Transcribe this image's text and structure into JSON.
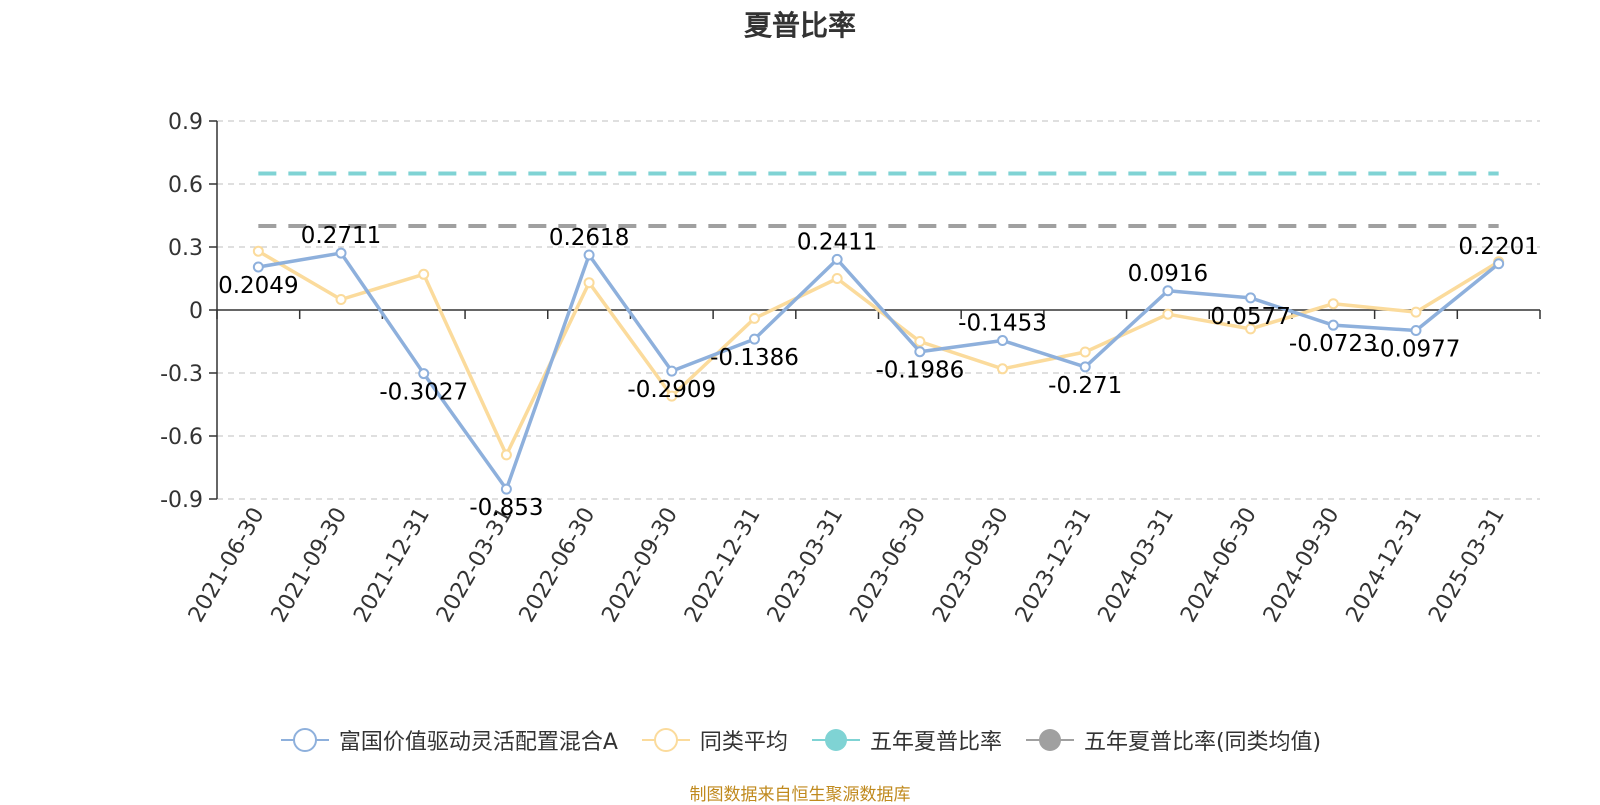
{
  "title": "夏普比率",
  "source_note": "制图数据来自恒生聚源数据库",
  "colors": {
    "fund": "#8eb0dc",
    "peer": "#fbdb9c",
    "five_year": "#7fd3d4",
    "five_year_peer": "#a0a0a0",
    "grid": "#cccccc",
    "axis": "#333333"
  },
  "legend": [
    {
      "name": "富国价值驱动灵活配置混合A",
      "color": "#8eb0dc",
      "style": "hollow-circle"
    },
    {
      "name": "同类平均",
      "color": "#fbdb9c",
      "style": "hollow-circle"
    },
    {
      "name": "五年夏普比率",
      "color": "#7fd3d4",
      "style": "filled-circle"
    },
    {
      "name": "五年夏普比率(同类均值)",
      "color": "#a0a0a0",
      "style": "filled-circle"
    }
  ],
  "chart_data": {
    "type": "line",
    "title": "夏普比率",
    "categories": [
      "2021-06-30",
      "2021-09-30",
      "2021-12-31",
      "2022-03-31",
      "2022-06-30",
      "2022-09-30",
      "2022-12-31",
      "2023-03-31",
      "2023-06-30",
      "2023-09-30",
      "2023-12-31",
      "2024-03-31",
      "2024-06-30",
      "2024-09-30",
      "2024-12-31",
      "2025-03-31"
    ],
    "ylim": [
      -0.9,
      0.9
    ],
    "yticks": [
      "0.9",
      "0.6",
      "0.3",
      "0",
      "-0.3",
      "-0.6",
      "-0.9"
    ],
    "ytick_values": [
      0.9,
      0.6,
      0.3,
      0,
      -0.3,
      -0.6,
      -0.9
    ],
    "grid": true,
    "legend_position": "bottom",
    "series": [
      {
        "name": "富国价值驱动灵活配置混合A",
        "values": [
          0.2049,
          0.2711,
          -0.3027,
          -0.853,
          0.2618,
          -0.2909,
          -0.1386,
          0.2411,
          -0.1986,
          -0.1453,
          -0.271,
          0.0916,
          0.0577,
          -0.0723,
          -0.0977,
          0.2201
        ],
        "labels": [
          "0.2049",
          "0.2711",
          "-0.3027",
          "-0.853",
          "0.2618",
          "-0.2909",
          "-0.1386",
          "0.2411",
          "-0.1986",
          "-0.1453",
          "-0.271",
          "0.0916",
          "0.0577",
          "-0.0723",
          "-0.0977",
          "0.2201"
        ]
      },
      {
        "name": "同类平均",
        "values": [
          0.28,
          0.05,
          0.17,
          -0.69,
          0.13,
          -0.41,
          -0.04,
          0.15,
          -0.15,
          -0.28,
          -0.2,
          -0.02,
          -0.09,
          0.03,
          -0.01,
          0.23
        ]
      }
    ],
    "reference_lines": [
      {
        "name": "五年夏普比率",
        "value": 0.65
      },
      {
        "name": "五年夏普比率(同类均值)",
        "value": 0.4
      }
    ]
  }
}
